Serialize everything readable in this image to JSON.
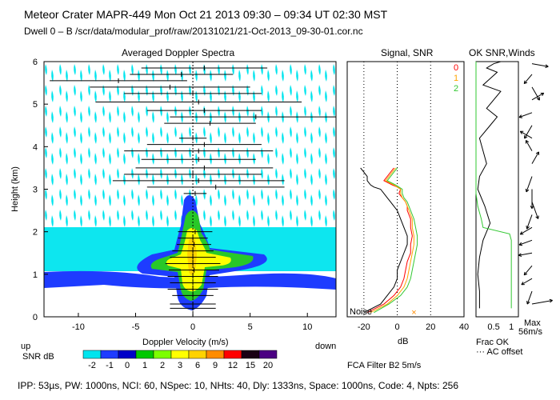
{
  "header": {
    "line1": "Meteor Crater  MAPR-449  Mon Oct 21 2013 09:30 – 09:34 UT 02:30 MST",
    "line2": "Dwell  0 –  B   /scr/data/modular_prof/raw/20131021/21-Oct-2013_09-30-01.cor.nc"
  },
  "footer": "IPP: 53µs,  PW: 1000ns,  NCI: 60,  NSpec: 10, NHts: 40,  Dly: 1333ns,  Space: 1000ns,  Code: 4,  Npts: 256",
  "colors": {
    "cyan": "#00e5ee",
    "blue": "#1e3cff",
    "green": "#28c828",
    "yellow": "#ffff00",
    "red": "#ff0000",
    "orange": "#ff8c00",
    "black": "#000000",
    "gold": "#ffa500"
  },
  "chart_data": [
    {
      "type": "heatmap",
      "title": "Averaged Doppler Spectra",
      "xlabel": "Doppler Velocity (m/s)",
      "ylabel": "Height (km)",
      "xlim": [
        -13,
        12.5
      ],
      "ylim": [
        0,
        6
      ],
      "xticks": [
        -10,
        -5,
        0,
        5,
        10
      ],
      "yticks": [
        0,
        1,
        2,
        3,
        4,
        5,
        6
      ],
      "direction_left": "up",
      "direction_right": "down",
      "colorbar_title": "SNR dB",
      "colorbar_levels": [
        -2,
        -1,
        0,
        1,
        2,
        3,
        6,
        9,
        12,
        15,
        20
      ],
      "colorbar_colors": [
        "#00e5ee",
        "#1e3cff",
        "#0000c8",
        "#00c800",
        "#7cff00",
        "#ffff00",
        "#ffd200",
        "#ff8c00",
        "#ff0000",
        "#1a0014",
        "#4b0082"
      ],
      "peak_bars": [
        {
          "h": 0.2,
          "v": 0.0,
          "hw": 2.0
        },
        {
          "h": 0.3,
          "v": 0.0,
          "hw": 2.0
        },
        {
          "h": 0.5,
          "v": 0.0,
          "hw": 1.8
        },
        {
          "h": 0.65,
          "v": 0.0,
          "hw": 2.2
        },
        {
          "h": 0.8,
          "v": 0.0,
          "hw": 2.0
        },
        {
          "h": 0.95,
          "v": 0.0,
          "hw": 2.2
        },
        {
          "h": 1.1,
          "v": 0.1,
          "hw": 2.2
        },
        {
          "h": 1.25,
          "v": 0.0,
          "hw": 2.4
        },
        {
          "h": 1.4,
          "v": 0.0,
          "hw": 2.0
        },
        {
          "h": 1.55,
          "v": 0.0,
          "hw": 1.8
        },
        {
          "h": 1.7,
          "v": 0.1,
          "hw": 1.5
        },
        {
          "h": 1.85,
          "v": 0.0,
          "hw": 1.3
        },
        {
          "h": 2.0,
          "v": 0.2,
          "hw": 1.5
        },
        {
          "h": 2.9,
          "v": 0.2,
          "hw": 1.0
        },
        {
          "h": 3.05,
          "v": 2.0,
          "hw": 6.0
        },
        {
          "h": 3.2,
          "v": 0.5,
          "hw": 7.5
        },
        {
          "h": 3.35,
          "v": 0.0,
          "hw": 6.0
        },
        {
          "h": 3.5,
          "v": 1.0,
          "hw": 6.0
        },
        {
          "h": 3.7,
          "v": 0.5,
          "hw": 5.0
        },
        {
          "h": 3.9,
          "v": 0.5,
          "hw": 6.5
        },
        {
          "h": 4.05,
          "v": 1.0,
          "hw": 5.0
        },
        {
          "h": 4.2,
          "v": 0.0,
          "hw": 1.2
        },
        {
          "h": 4.55,
          "v": 1.5,
          "hw": 4.0
        },
        {
          "h": 4.7,
          "v": 5.5,
          "hw": 7.5
        },
        {
          "h": 4.85,
          "v": 1.0,
          "hw": 5.0
        },
        {
          "h": 5.05,
          "v": 0.5,
          "hw": 9.0
        },
        {
          "h": 5.25,
          "v": 0.0,
          "hw": 6.0
        },
        {
          "h": 5.4,
          "v": -2.0,
          "hw": 7.0
        },
        {
          "h": 5.55,
          "v": -6.5,
          "hw": 6.0
        },
        {
          "h": 5.7,
          "v": -1.0,
          "hw": 4.5
        },
        {
          "h": 5.85,
          "v": 1.0,
          "hw": 5.5
        }
      ]
    },
    {
      "type": "line",
      "title": "Signal, SNR",
      "xlabel": "dB",
      "xlim": [
        -30,
        40
      ],
      "ylim": [
        0,
        6
      ],
      "xticks": [
        -20,
        0,
        20,
        40
      ],
      "noise_label": "Noise",
      "legend": [
        "0",
        "1",
        "2"
      ],
      "series": [
        {
          "name": "0",
          "color": "#ff0000",
          "x": [
            -18,
            -8,
            -2,
            2,
            4,
            5,
            6,
            8,
            8,
            9,
            8,
            8,
            6,
            6,
            5,
            3,
            1,
            2,
            0,
            -3,
            -8,
            -6,
            -4,
            -2
          ],
          "y": [
            0.1,
            0.3,
            0.5,
            0.7,
            0.9,
            1.1,
            1.3,
            1.5,
            1.7,
            1.9,
            2.1,
            2.3,
            2.5,
            2.6,
            2.7,
            2.8,
            2.9,
            3.0,
            3.05,
            3.1,
            3.2,
            3.3,
            3.4,
            3.5
          ]
        },
        {
          "name": "1",
          "color": "#ffa500",
          "x": [
            -16,
            -6,
            0,
            4,
            6,
            7,
            8,
            9,
            10,
            10,
            9,
            9,
            7,
            6,
            5,
            3,
            2,
            2,
            0,
            -2,
            -7,
            -5,
            -3,
            -1
          ],
          "y": [
            0.1,
            0.3,
            0.5,
            0.7,
            0.9,
            1.1,
            1.3,
            1.5,
            1.7,
            1.9,
            2.1,
            2.3,
            2.5,
            2.6,
            2.7,
            2.8,
            2.9,
            3.0,
            3.05,
            3.1,
            3.2,
            3.3,
            3.4,
            3.5
          ]
        },
        {
          "name": "2",
          "color": "#32c832",
          "x": [
            -14,
            -5,
            2,
            6,
            8,
            9,
            10,
            11,
            12,
            12,
            11,
            10,
            8,
            7,
            6,
            4,
            3,
            3,
            1,
            -1,
            -6,
            -4,
            -2,
            0
          ],
          "y": [
            0.1,
            0.3,
            0.5,
            0.7,
            0.9,
            1.1,
            1.3,
            1.5,
            1.7,
            1.9,
            2.1,
            2.3,
            2.5,
            2.6,
            2.7,
            2.8,
            2.9,
            3.0,
            3.05,
            3.1,
            3.2,
            3.3,
            3.4,
            3.5
          ]
        },
        {
          "name": "signal",
          "color": "#000000",
          "x": [
            -20,
            -10,
            -6,
            -2,
            0,
            0,
            2,
            4,
            6,
            6,
            4,
            2,
            0,
            -2,
            -4,
            -6,
            -8,
            -10,
            -14,
            -16,
            -18,
            -18,
            -20,
            -22
          ],
          "y": [
            0.1,
            0.3,
            0.5,
            0.7,
            0.9,
            1.1,
            1.3,
            1.5,
            1.7,
            1.9,
            2.1,
            2.3,
            2.5,
            2.6,
            2.7,
            2.8,
            2.9,
            3.0,
            3.05,
            3.1,
            3.2,
            3.3,
            3.4,
            3.5
          ]
        }
      ]
    },
    {
      "type": "line",
      "title": "OK SNR,Winds",
      "xlabel": "Frac OK",
      "xticks": [
        0.5,
        1
      ],
      "legend_note": "··· AC offset",
      "max_label": "Max",
      "max_value": "56m/s",
      "xlim": [
        0,
        1.2
      ],
      "ylim": [
        0,
        6
      ],
      "series": [
        {
          "name": "frac-ok-black",
          "color": "#000000",
          "x": [
            0.1,
            0.1,
            0.05,
            0.1,
            0.2,
            0.4,
            0.25,
            0.05,
            0.1,
            0.3,
            0.2,
            0.1,
            0.4,
            0.6,
            0.3,
            0.5,
            0.7,
            0.2,
            0.4,
            0.6,
            0.3,
            0.5,
            0.7,
            0.4
          ],
          "y": [
            0.2,
            0.6,
            1.0,
            1.4,
            1.8,
            2.2,
            2.6,
            3.0,
            3.3,
            3.6,
            3.9,
            4.2,
            4.5,
            4.7,
            4.9,
            5.1,
            5.3,
            5.45,
            5.6,
            5.75,
            5.85,
            5.95,
            6.0,
            6.0
          ]
        },
        {
          "name": "frac-ok-green",
          "color": "#32c832",
          "x": [
            1.0,
            1.0,
            1.0,
            1.0,
            1.0,
            0.95,
            0.2,
            0.15,
            0.05,
            0.0,
            0.0,
            0.0,
            0.0,
            0.0,
            0.0,
            0.0,
            0.0,
            0.0,
            0.0,
            0.0,
            0.0,
            0.0,
            0.0,
            0.0
          ],
          "y": [
            0.2,
            0.6,
            1.0,
            1.4,
            1.8,
            1.95,
            2.1,
            2.3,
            2.6,
            2.9,
            3.2,
            3.5,
            3.8,
            4.1,
            4.4,
            4.7,
            5.0,
            5.2,
            5.4,
            5.6,
            5.75,
            5.85,
            5.95,
            6.0
          ]
        }
      ],
      "wind_barbs": [
        {
          "h": 0.3,
          "dir": 80,
          "spd": 1.0
        },
        {
          "h": 0.6,
          "dir": 200,
          "spd": 0.5
        },
        {
          "h": 0.9,
          "dir": 240,
          "spd": 0.4
        },
        {
          "h": 1.2,
          "dir": 220,
          "spd": 0.4
        },
        {
          "h": 1.5,
          "dir": 260,
          "spd": 0.5
        },
        {
          "h": 1.8,
          "dir": 250,
          "spd": 0.5
        },
        {
          "h": 2.1,
          "dir": 240,
          "spd": 0.5
        },
        {
          "h": 2.4,
          "dir": 200,
          "spd": 0.6
        },
        {
          "h": 2.7,
          "dir": 160,
          "spd": 0.8
        },
        {
          "h": 3.0,
          "dir": 180,
          "spd": 0.9
        },
        {
          "h": 3.3,
          "dir": 200,
          "spd": 0.7
        },
        {
          "h": 3.6,
          "dir": 30,
          "spd": 0.5
        },
        {
          "h": 3.9,
          "dir": 330,
          "spd": 0.4
        },
        {
          "h": 4.2,
          "dir": 300,
          "spd": 0.5
        },
        {
          "h": 4.5,
          "dir": 210,
          "spd": 0.6
        },
        {
          "h": 4.8,
          "dir": 250,
          "spd": 0.5
        },
        {
          "h": 5.1,
          "dir": 60,
          "spd": 0.5
        },
        {
          "h": 5.4,
          "dir": 150,
          "spd": 0.6
        },
        {
          "h": 5.7,
          "dir": 220,
          "spd": 0.4
        },
        {
          "h": 5.95,
          "dir": 100,
          "spd": 0.7
        }
      ]
    }
  ],
  "filter_label": "FCA Filter B2  5m/s"
}
